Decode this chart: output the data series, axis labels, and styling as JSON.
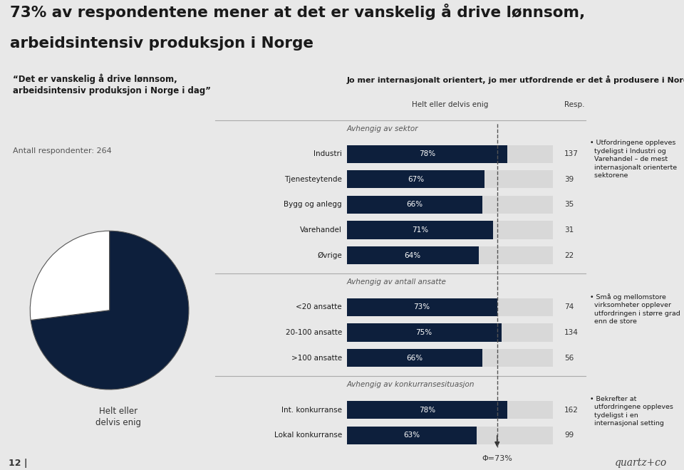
{
  "title_line1": "73% av respondentene mener at det er vanskelig å drive lønnsom,",
  "title_line2": "arbeidsintensiv produksjon i Norge",
  "bg_color": "#e8e8e8",
  "right_bg_color": "#ffffff",
  "dark_navy": "#0d1f3c",
  "quote_text": "“Det er vanskelig å drive lønnsom,\narbeidsintensiv produksjon i Norge i dag”",
  "respondent_text": "Antall respondenter: 264",
  "pie_value": 73,
  "pie_label": "Helt eller\ndelvis enig",
  "chart_title": "Jo mer internasjonalt orientert, jo mer utfordrende er det å produsere i Norge",
  "section1_label": "Avhengig av sektor",
  "section2_label": "Avhengig av antall ansatte",
  "section3_label": "Avhengig av konkurransesituasjon",
  "col_label1": "Helt eller delvis enig",
  "col_label2": "Resp.",
  "bars_sektor": [
    {
      "label": "Industri",
      "pct": 78,
      "resp": 137
    },
    {
      "label": "Tjenesteytende",
      "pct": 67,
      "resp": 39
    },
    {
      "label": "Bygg og anlegg",
      "pct": 66,
      "resp": 35
    },
    {
      "label": "Varehandel",
      "pct": 71,
      "resp": 31
    },
    {
      "label": "Øvrige",
      "pct": 64,
      "resp": 22
    }
  ],
  "bars_ansatte": [
    {
      "label": "<20 ansatte",
      "pct": 73,
      "resp": 74
    },
    {
      "label": "20-100 ansatte",
      "pct": 75,
      "resp": 134
    },
    {
      "label": ">100 ansatte",
      "pct": 66,
      "resp": 56
    }
  ],
  "bars_konkurranse": [
    {
      "label": "Int. konkurranse",
      "pct": 78,
      "resp": 162
    },
    {
      "label": "Lokal konkurranse",
      "pct": 63,
      "resp": 99
    }
  ],
  "note1": "Utfordringene oppleves\ntydeligst i Industri og\nVarehandel – de mest\ninternasjonalt orienterte\nsektorene",
  "note2": "Små og mellomstore\nvirksomheter opplever\nutfordringen i større grad\nenn de store",
  "note3": "Bekrefter at\nutfordringene oppleves\ntydeligst i en\ninternasjonal setting",
  "phi_label": "Φ=73%",
  "page_number": "12",
  "logo_text": "quartz+co",
  "dashed_line_pct": 73
}
